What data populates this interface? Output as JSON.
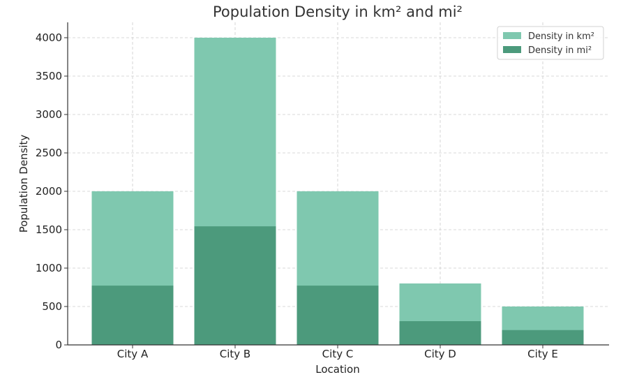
{
  "chart_data": {
    "type": "bar",
    "title": "Population Density in km² and mi²",
    "xlabel": "Location",
    "ylabel": "Population Density",
    "categories": [
      "City A",
      "City B",
      "City C",
      "City D",
      "City E"
    ],
    "series": [
      {
        "name": "Density in km²",
        "values": [
          2000,
          4000,
          2000,
          800,
          500
        ],
        "color": "#7fc8af"
      },
      {
        "name": "Density in mi²",
        "values": [
          772,
          1544,
          772,
          309,
          193
        ],
        "color": "#4c9a7c"
      }
    ],
    "ylim": [
      0,
      4200
    ],
    "yticks": [
      0,
      500,
      1000,
      1500,
      2000,
      2500,
      3000,
      3500,
      4000
    ],
    "grid": true,
    "legend": "top-right",
    "overlay": true
  }
}
